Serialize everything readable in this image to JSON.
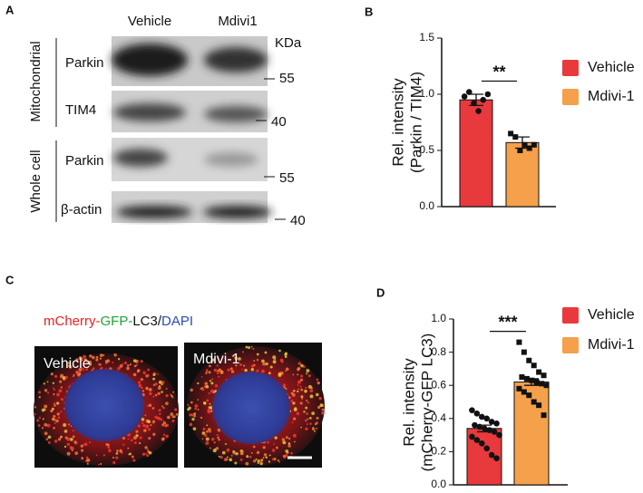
{
  "panel_a": {
    "panel_label": "A",
    "lanes": [
      "Vehicle",
      "Mdivi1"
    ],
    "unit": "KDa",
    "groups": [
      "Mitochondrial",
      "Whole cell"
    ],
    "rows": [
      "Parkin",
      "TIM4",
      "Parkin",
      "β-actin"
    ],
    "markers": [
      "55",
      "40",
      "55",
      "40"
    ]
  },
  "panel_c": {
    "panel_label": "C",
    "stain": [
      "mCherry-",
      "GFP-",
      "LC3/",
      "DAPI"
    ],
    "images": [
      "Vehicle",
      "Mdivi-1"
    ]
  },
  "chart_data": [
    {
      "type": "bar",
      "panel_label": "B",
      "y_label": [
        "Rel. intensity",
        "(Parkin / TIM4)"
      ],
      "categories": [
        "Vehicle",
        "Mdivi-1"
      ],
      "colors": [
        "#e8393d",
        "#f5a04a"
      ],
      "values": [
        0.95,
        0.57
      ],
      "errors": [
        0.05,
        0.05
      ],
      "points": [
        [
          0.98,
          1.02,
          0.92,
          0.85,
          0.95,
          1.0
        ],
        [
          0.65,
          0.62,
          0.5,
          0.55,
          0.52,
          0.55
        ]
      ],
      "significance": "**",
      "ylim": [
        0,
        1.5
      ],
      "yticks": [
        {
          "value": 0,
          "label": "0.0"
        },
        0.5,
        {
          "value": 1,
          "label": "1.0"
        },
        1.5
      ]
    },
    {
      "type": "bar",
      "panel_label": "D",
      "y_label": [
        "Rel. intensity",
        "(mCherry-GFP LC3)"
      ],
      "categories": [
        "Vehicle",
        "Mdivi-1"
      ],
      "colors": [
        "#e8393d",
        "#f5a04a"
      ],
      "values": [
        0.34,
        0.62
      ],
      "errors": [
        0.02,
        0.02
      ],
      "points": [
        [
          0.45,
          0.43,
          0.41,
          0.4,
          0.38,
          0.37,
          0.36,
          0.35,
          0.34,
          0.33,
          0.32,
          0.3,
          0.29,
          0.27,
          0.25,
          0.22,
          0.18,
          0.16
        ],
        [
          0.86,
          0.8,
          0.75,
          0.72,
          0.68,
          0.66,
          0.65,
          0.64,
          0.63,
          0.62,
          0.61,
          0.6,
          0.58,
          0.56,
          0.54,
          0.5,
          0.48,
          0.42
        ]
      ],
      "significance": "***",
      "ylim": [
        0,
        1
      ],
      "yticks": [
        {
          "value": 0,
          "label": "0.0"
        },
        0.2,
        0.4,
        0.6,
        0.8,
        {
          "value": 1,
          "label": "1.0"
        }
      ]
    }
  ]
}
